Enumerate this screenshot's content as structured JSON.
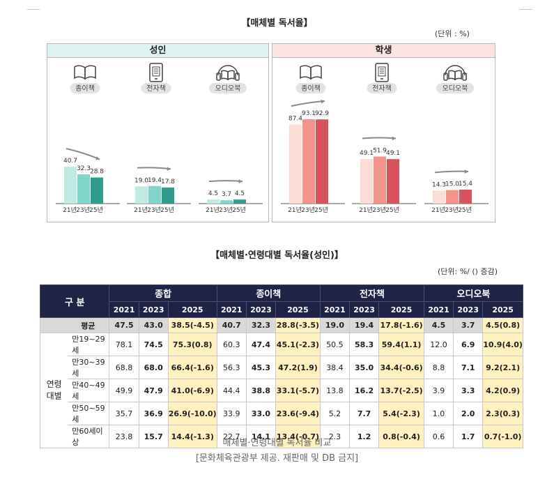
{
  "top_title": "【매체별 독서율】",
  "top_unit": "(단위 : %)",
  "table_title": "【매체별·연령대별 독서율(성인)】",
  "table_unit": "(단위: %/ () 증감)",
  "caption": [
    "매체별·연령대별 독서율 비교",
    "[문화체육관광부 제공. 재판매 및 DB 금지]"
  ],
  "colors": {
    "adult_header": "#dff3f1",
    "student_header": "#fbe3e0",
    "adult_bars": [
      "#bfeae4",
      "#7fd6cb",
      "#2f9c8c"
    ],
    "student_bars": [
      "#fbdcd6",
      "#f2948a",
      "#d8535d"
    ],
    "table_header": "#1f2447",
    "highlight": "#fff2c0"
  },
  "chart_data": [
    {
      "type": "bar",
      "title": "성인",
      "groups": [
        {
          "label": "종이책",
          "icon": "book-icon",
          "categories": [
            "21년",
            "23년",
            "25년"
          ],
          "values": [
            40.7,
            32.3,
            28.8
          ],
          "labels": [
            "40.7",
            "32.3",
            "28.8"
          ]
        },
        {
          "label": "전자책",
          "icon": "ebook-icon",
          "categories": [
            "21년",
            "23년",
            "25년"
          ],
          "values": [
            19.0,
            19.4,
            17.8
          ],
          "labels": [
            "19.0",
            "19.4",
            "17.8"
          ]
        },
        {
          "label": "오디오북",
          "icon": "audiobook-icon",
          "categories": [
            "21년",
            "23년",
            "25년"
          ],
          "values": [
            4.5,
            3.7,
            4.5
          ],
          "labels": [
            "4.5",
            "3.7",
            "4.5"
          ]
        }
      ],
      "ylim": [
        0,
        100
      ]
    },
    {
      "type": "bar",
      "title": "학생",
      "groups": [
        {
          "label": "종이책",
          "icon": "book-icon",
          "categories": [
            "21년",
            "23년",
            "25년"
          ],
          "values": [
            87.4,
            93.1,
            92.9
          ],
          "labels": [
            "87.4",
            "93.1",
            "92.9"
          ]
        },
        {
          "label": "전자책",
          "icon": "ebook-icon",
          "categories": [
            "21년",
            "23년",
            "25년"
          ],
          "values": [
            49.1,
            51.9,
            49.1
          ],
          "labels": [
            "49.1",
            "51.9",
            "49.1"
          ]
        },
        {
          "label": "오디오북",
          "icon": "audiobook-icon",
          "categories": [
            "21년",
            "23년",
            "25년"
          ],
          "values": [
            14.3,
            15.0,
            15.4
          ],
          "labels": [
            "14.3",
            "15.0",
            "15.4"
          ]
        }
      ],
      "ylim": [
        0,
        100
      ]
    },
    {
      "type": "table",
      "title": "【매체별·연령대별 독서율(성인)】",
      "corner": "구 분",
      "media": [
        "종합",
        "종이책",
        "전자책",
        "오디오북"
      ],
      "years": [
        "2021",
        "2023",
        "2025"
      ],
      "group_label": "연령\n대별",
      "rows": [
        {
          "label": "평균",
          "values": [
            "47.5",
            "43.0",
            "38.5(-4.5)",
            "40.7",
            "32.3",
            "28.8(-3.5)",
            "19.0",
            "19.4",
            "17.8(-1.6)",
            "4.5",
            "3.7",
            "4.5(0.8)"
          ]
        },
        {
          "label": "만19~29세",
          "values": [
            "78.1",
            "74.5",
            "75.3(0.8)",
            "60.3",
            "47.4",
            "45.1(-2.3)",
            "50.5",
            "58.3",
            "59.4(1.1)",
            "12.0",
            "6.9",
            "10.9(4.0)"
          ]
        },
        {
          "label": "만30~39세",
          "values": [
            "68.8",
            "68.0",
            "66.4(-1.6)",
            "56.3",
            "45.3",
            "47.2(1.9)",
            "38.4",
            "35.0",
            "34.4(-0.6)",
            "8.8",
            "7.1",
            "9.2(2.1)"
          ]
        },
        {
          "label": "만40~49세",
          "values": [
            "49.9",
            "47.9",
            "41.0(-6.9)",
            "44.4",
            "38.8",
            "33.1(-5.7)",
            "13.8",
            "16.2",
            "13.7(-2.5)",
            "3.9",
            "3.3",
            "4.2(0.9)"
          ]
        },
        {
          "label": "만50~59세",
          "values": [
            "35.7",
            "36.9",
            "26.9(-10.0)",
            "33.9",
            "33.0",
            "23.6(-9.4)",
            "5.2",
            "7.7",
            "5.4(-2.3)",
            "1.0",
            "2.0",
            "2.3(0.3)"
          ]
        },
        {
          "label": "만60세이상",
          "values": [
            "23.8",
            "15.7",
            "14.4(-1.3)",
            "22.7",
            "14.1",
            "13.4(-0.7)",
            "2.3",
            "1.2",
            "0.8(-0.4)",
            "0.6",
            "1.7",
            "0.7(-1.0)"
          ]
        }
      ]
    }
  ]
}
